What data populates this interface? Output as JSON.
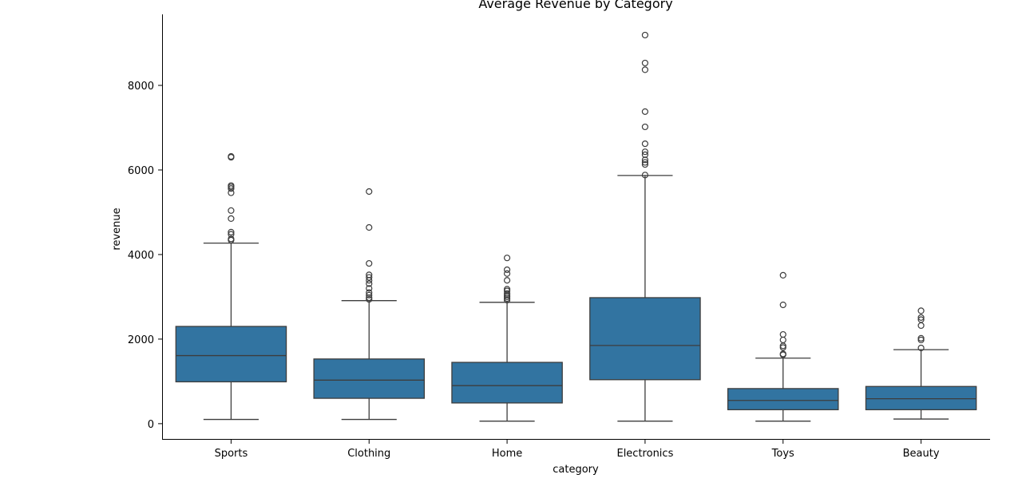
{
  "chart_data": {
    "type": "boxplot",
    "title": "Average Revenue by Category",
    "xlabel": "category",
    "ylabel": "revenue",
    "ylim": [
      -380,
      9680
    ],
    "yticks": [
      0,
      2000,
      4000,
      6000,
      8000
    ],
    "ytick_labels": [
      "0",
      "2000",
      "4000",
      "6000",
      "8000"
    ],
    "grid": false,
    "box_color": "#3274a1",
    "line_color": "#3d3d3d",
    "categories": [
      "Sports",
      "Clothing",
      "Home",
      "Electronics",
      "Toys",
      "Beauty"
    ],
    "boxes": [
      {
        "category": "Sports",
        "whisker_low": 100,
        "q1": 990,
        "median": 1610,
        "q3": 2300,
        "whisker_high": 4270,
        "outliers": [
          4340,
          4370,
          4480,
          4530,
          4850,
          5040,
          5460,
          5560,
          5600,
          5630,
          6300,
          6320
        ]
      },
      {
        "category": "Clothing",
        "whisker_low": 100,
        "q1": 600,
        "median": 1030,
        "q3": 1530,
        "whisker_high": 2910,
        "outliers": [
          2940,
          2980,
          3040,
          3100,
          3200,
          3310,
          3390,
          3460,
          3520,
          3790,
          4640,
          5490
        ]
      },
      {
        "category": "Home",
        "whisker_low": 60,
        "q1": 490,
        "median": 900,
        "q3": 1450,
        "whisker_high": 2870,
        "outliers": [
          2920,
          2960,
          3000,
          3040,
          3080,
          3140,
          3180,
          3390,
          3550,
          3640,
          3920
        ]
      },
      {
        "category": "Electronics",
        "whisker_low": 60,
        "q1": 1040,
        "median": 1850,
        "q3": 2980,
        "whisker_high": 5870,
        "outliers": [
          5880,
          6130,
          6180,
          6240,
          6360,
          6430,
          6620,
          7020,
          7380,
          8370,
          8530,
          9190
        ]
      },
      {
        "category": "Toys",
        "whisker_low": 60,
        "q1": 330,
        "median": 550,
        "q3": 830,
        "whisker_high": 1550,
        "outliers": [
          1630,
          1650,
          1800,
          1840,
          1980,
          2110,
          2810,
          3510
        ]
      },
      {
        "category": "Beauty",
        "whisker_low": 110,
        "q1": 330,
        "median": 590,
        "q3": 880,
        "whisker_high": 1750,
        "outliers": [
          1790,
          1980,
          2020,
          2320,
          2460,
          2510,
          2670
        ]
      }
    ]
  }
}
